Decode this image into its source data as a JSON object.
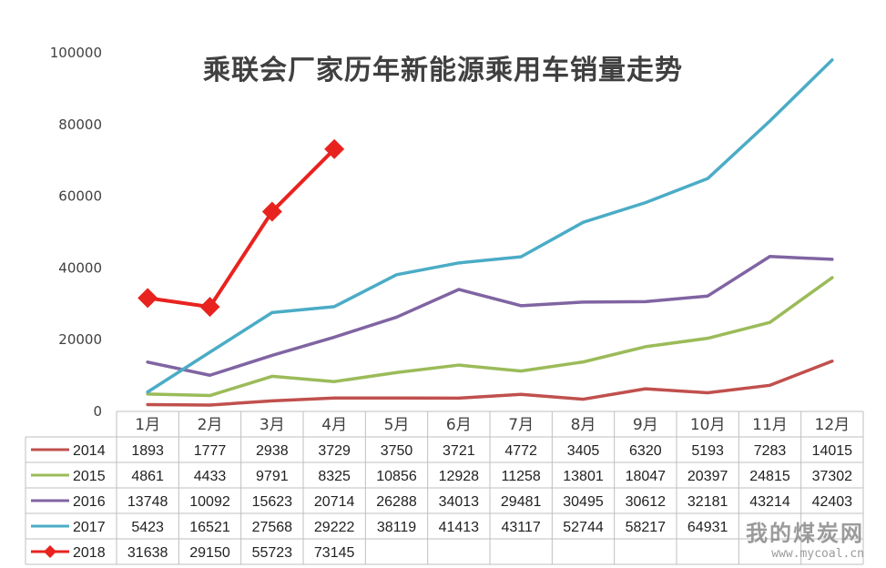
{
  "chart_data": {
    "type": "line",
    "title": "乘联会厂家历年新能源乘用车销量走势",
    "categories": [
      "1月",
      "2月",
      "3月",
      "4月",
      "5月",
      "6月",
      "7月",
      "8月",
      "9月",
      "10月",
      "11月",
      "12月"
    ],
    "y_ticks": [
      "0",
      "20000",
      "40000",
      "60000",
      "80000",
      "100000"
    ],
    "ylim": [
      0,
      100000
    ],
    "grid": false,
    "legend": "data-table",
    "series": [
      {
        "name": "2014",
        "color": "#c0504d",
        "marker": "none",
        "values": [
          1893,
          1777,
          2938,
          3729,
          3750,
          3721,
          4772,
          3405,
          6320,
          5193,
          7283,
          14015
        ]
      },
      {
        "name": "2015",
        "color": "#9bbb59",
        "marker": "none",
        "values": [
          4861,
          4433,
          9791,
          8325,
          10856,
          12928,
          11258,
          13801,
          18047,
          20397,
          24815,
          37302
        ]
      },
      {
        "name": "2016",
        "color": "#8064a2",
        "marker": "none",
        "values": [
          13748,
          10092,
          15623,
          20714,
          26288,
          34013,
          29481,
          30495,
          30612,
          32181,
          43214,
          42403
        ]
      },
      {
        "name": "2017",
        "color": "#4bacc6",
        "marker": "none",
        "values": [
          5423,
          16521,
          27568,
          29222,
          38119,
          41413,
          43117,
          52744,
          58217,
          64931,
          81000,
          98000
        ],
        "labels": [
          "5423",
          "16521",
          "27568",
          "29222",
          "38119",
          "41413",
          "43117",
          "52744",
          "58217",
          "64931",
          "",
          ""
        ]
      },
      {
        "name": "2018",
        "color": "#e8231f",
        "marker": "diamond",
        "values": [
          31638,
          29150,
          55723,
          73145,
          null,
          null,
          null,
          null,
          null,
          null,
          null,
          null
        ]
      }
    ]
  },
  "watermark": {
    "text": "我的煤炭网",
    "url": "www.mycoal.cn"
  }
}
